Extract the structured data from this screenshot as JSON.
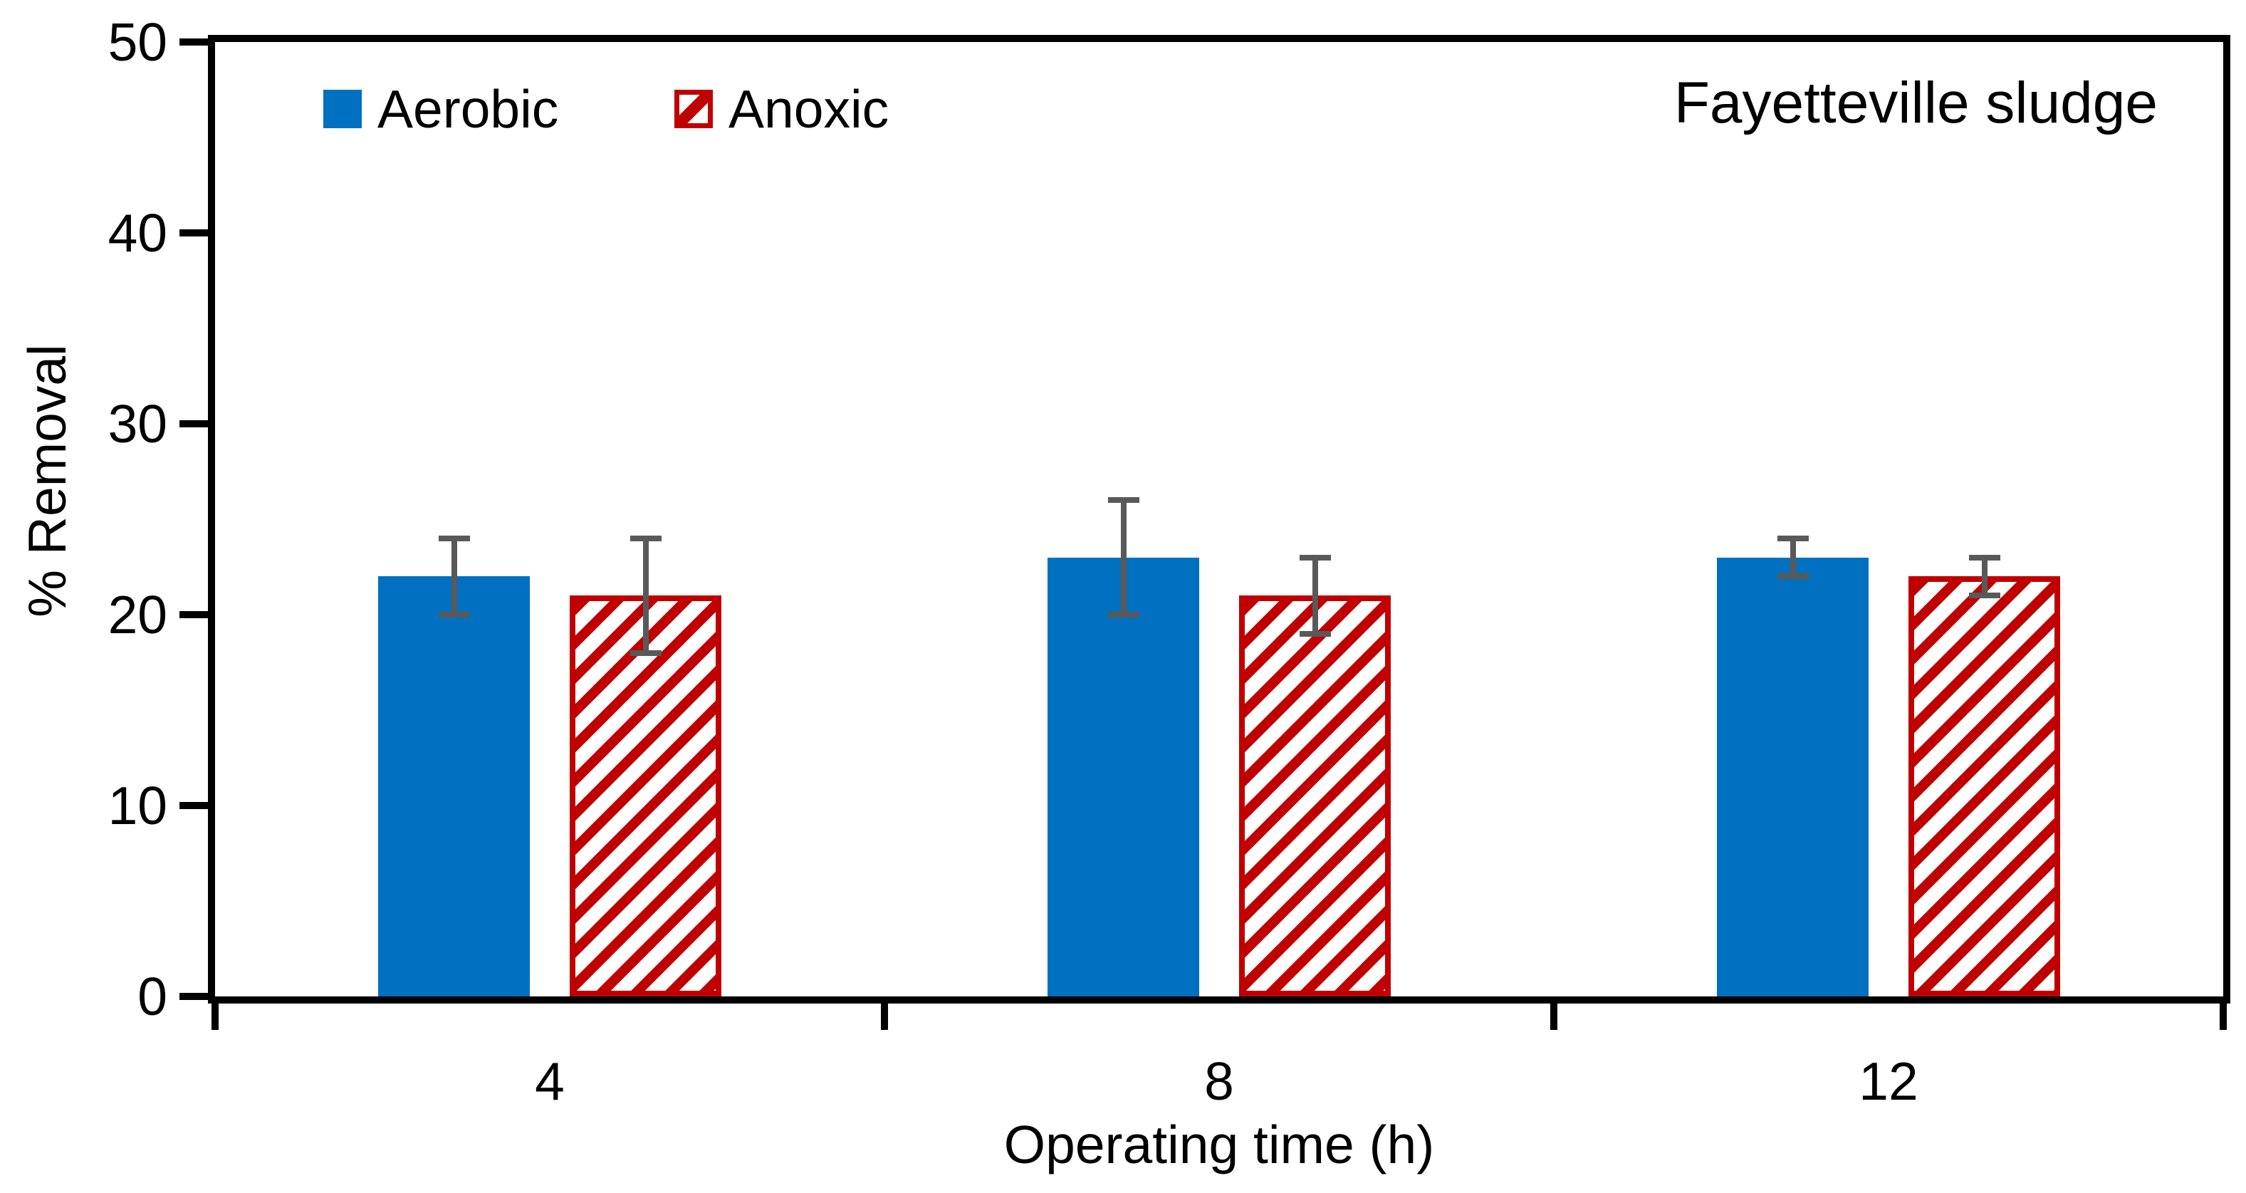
{
  "chart_data": {
    "type": "bar",
    "title": "Fayetteville sludge",
    "xlabel": "Operating time (h)",
    "ylabel": "% Removal",
    "categories": [
      "4",
      "8",
      "12"
    ],
    "series": [
      {
        "name": "Aerobic",
        "fill": "solid",
        "color": "#0070C0",
        "values": [
          22,
          23,
          23
        ],
        "errors": [
          2,
          3,
          1
        ]
      },
      {
        "name": "Anoxic",
        "fill": "diagonal-hatch-up",
        "color": "#C00000",
        "values": [
          21,
          21,
          22
        ],
        "errors": [
          3,
          2,
          1
        ]
      }
    ],
    "ylim": [
      0,
      50
    ],
    "yticks": [
      "0",
      "10",
      "20",
      "30",
      "40",
      "50"
    ],
    "ytick_step": 10,
    "grid": false,
    "legend_position": "top-left-inside",
    "error_bar_color": "#595959",
    "axis_color": "#000000"
  }
}
